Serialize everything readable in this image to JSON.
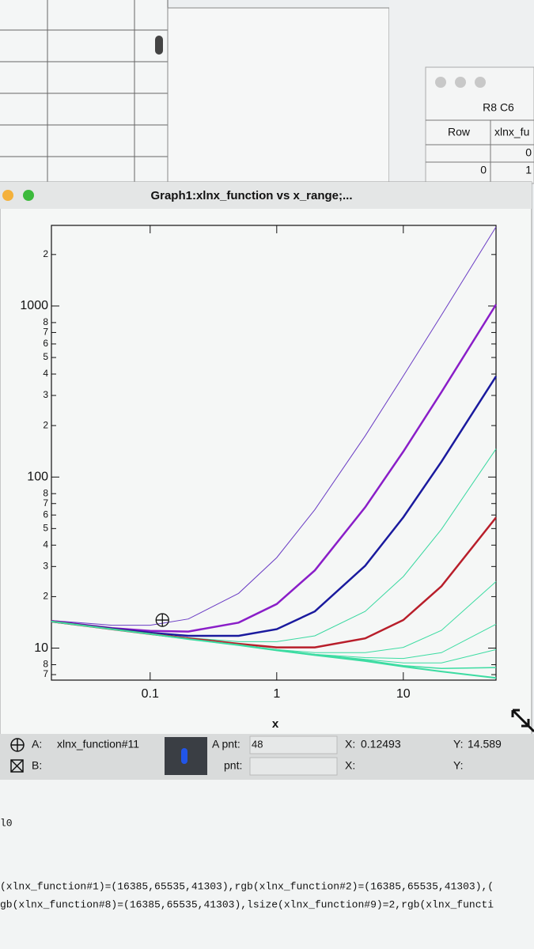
{
  "background_windows": {
    "table_window": {
      "title": "R8 C6",
      "header": [
        "Row",
        "xlnx_fu"
      ],
      "rows": [
        [
          "",
          "0"
        ],
        [
          "0",
          "1"
        ]
      ]
    }
  },
  "window": {
    "title": "Graph1:xlnx_function vs x_range;..."
  },
  "chart_data": {
    "type": "line",
    "x_label": "x",
    "log_x": true,
    "log_y": true,
    "xlim": [
      0.0166,
      54
    ],
    "ylim": [
      6.5,
      2960
    ],
    "xticks": [
      0.1,
      1,
      10
    ],
    "yticks": [
      {
        "value": 2000,
        "label": "2"
      },
      1000,
      {
        "value": 800,
        "label": "8"
      },
      {
        "value": 700,
        "label": "7"
      },
      {
        "value": 600,
        "label": "6"
      },
      {
        "value": 500,
        "label": "5"
      },
      {
        "value": 400,
        "label": "4"
      },
      {
        "value": 300,
        "label": "3"
      },
      {
        "value": 200,
        "label": "2"
      },
      100,
      {
        "value": 80,
        "label": "8"
      },
      {
        "value": 70,
        "label": "7"
      },
      {
        "value": 60,
        "label": "6"
      },
      {
        "value": 50,
        "label": "5"
      },
      {
        "value": 40,
        "label": "4"
      },
      {
        "value": 30,
        "label": "3"
      },
      {
        "value": 20,
        "label": "2"
      },
      10,
      {
        "value": 8,
        "label": "8"
      },
      {
        "value": 7,
        "label": "7"
      }
    ],
    "x": [
      0.0166,
      0.05,
      0.1,
      0.2,
      0.5,
      1,
      2,
      5,
      10,
      20,
      54
    ],
    "series": [
      {
        "color": "#6a3cc4",
        "line_width": 1,
        "values": [
          14.5,
          13.6,
          13.6,
          14.8,
          20.9,
          33.8,
          64.5,
          174,
          390,
          884,
          2900
        ]
      },
      {
        "color": "#8a1ec8",
        "line_width": 2.5,
        "values": [
          14.4,
          13.1,
          12.6,
          12.5,
          14.1,
          18.1,
          28.5,
          66.6,
          141,
          314,
          1020
        ]
      },
      {
        "color": "#1a1a9e",
        "line_width": 2.5,
        "values": [
          14.3,
          13.0,
          12.3,
          11.8,
          11.8,
          12.9,
          16.4,
          30.3,
          58.2,
          123,
          388
        ]
      },
      {
        "color": "#38d8a0",
        "line_width": 1,
        "values": [
          14.3,
          12.9,
          12.2,
          11.5,
          10.9,
          10.9,
          11.8,
          16.4,
          26.2,
          49.5,
          146
        ]
      },
      {
        "color": "#b81e2a",
        "line_width": 2.5,
        "values": [
          14.3,
          12.9,
          12.1,
          11.4,
          10.6,
          10.1,
          10.1,
          11.4,
          14.6,
          23.0,
          58
        ]
      },
      {
        "color": "#3cdca2",
        "line_width": 1,
        "values": [
          14.3,
          12.9,
          12.1,
          11.3,
          10.5,
          9.8,
          9.4,
          9.4,
          10.1,
          12.7,
          24.5
        ]
      },
      {
        "color": "#3cdca2",
        "line_width": 1,
        "values": [
          14.3,
          12.9,
          12.1,
          11.3,
          10.4,
          9.8,
          9.2,
          8.8,
          8.7,
          9.4,
          13.8
        ]
      },
      {
        "color": "#3cdca2",
        "line_width": 1,
        "values": [
          14.3,
          12.9,
          12.1,
          11.3,
          10.4,
          9.7,
          9.2,
          8.6,
          8.2,
          8.2,
          9.8
        ]
      },
      {
        "color": "#3cdca2",
        "line_width": 1.5,
        "values": [
          14.3,
          12.9,
          12.1,
          11.3,
          10.4,
          9.7,
          9.1,
          8.5,
          7.9,
          7.6,
          7.7
        ]
      },
      {
        "color": "#3cdca2",
        "line_width": 2,
        "values": [
          14.3,
          12.9,
          12.1,
          11.3,
          10.4,
          9.7,
          9.1,
          8.4,
          7.8,
          7.3,
          6.7
        ]
      }
    ],
    "cursor": {
      "x": 0.12493,
      "y": 14.589
    }
  },
  "info_bar": {
    "cursor_a": {
      "label": "A:",
      "trace": "xlnx_function#11",
      "pnt_label": "A pnt:",
      "pnt": 48,
      "x_label": "X:",
      "y_label": "Y:"
    },
    "cursor_b": {
      "label": "B:",
      "pnt_label": "pnt:",
      "x_label": "X:",
      "y_label": "Y:"
    }
  },
  "command_window": {
    "lines": [
      "l0",
      "(xlnx_function#1)=(16385,65535,41303),rgb(xlnx_function#2)=(16385,65535,41303),(",
      "gb(xlnx_function#8)=(16385,65535,41303),lsize(xlnx_function#9)=2,rgb(xlnx_functi"
    ]
  }
}
